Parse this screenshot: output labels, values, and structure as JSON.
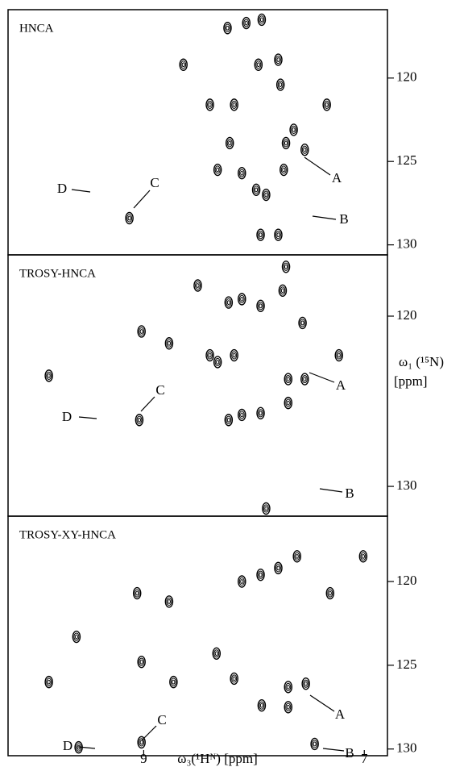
{
  "chart_data": [
    {
      "type": "scatter",
      "title": "HNCA",
      "color": "#000000",
      "xlim": [
        10.23,
        6.79
      ],
      "ylim": [
        115.9,
        130.6
      ],
      "yticks": [
        120,
        125,
        130
      ],
      "x": [
        8.24,
        8.07,
        7.93,
        7.78,
        7.96,
        7.76,
        8.18,
        8.22,
        7.98,
        7.73,
        7.71,
        7.54,
        8.11,
        7.94,
        7.78,
        8.33,
        8.4,
        8.64,
        9.13,
        7.34,
        7.64,
        7.89
      ],
      "y": [
        117.0,
        116.7,
        116.5,
        118.9,
        119.2,
        120.4,
        121.6,
        123.9,
        126.7,
        125.5,
        123.9,
        124.3,
        125.7,
        129.4,
        129.4,
        125.5,
        121.6,
        119.2,
        128.4,
        121.6,
        123.1,
        127.0
      ],
      "annotations": [
        "A",
        "B",
        "C",
        "D"
      ]
    },
    {
      "type": "scatter",
      "title": "TROSY-HNCA",
      "color": "#000000",
      "xlim": [
        10.23,
        6.79
      ],
      "ylim": [
        116.4,
        131.75
      ],
      "yticks": [
        120,
        130
      ],
      "ylabel": [
        "ω₁ (¹⁵N)",
        "[ppm]"
      ],
      "x": [
        7.94,
        8.11,
        8.23,
        7.74,
        7.56,
        7.54,
        7.69,
        7.69,
        7.94,
        8.11,
        8.23,
        8.33,
        8.18,
        8.77,
        9.02,
        8.51,
        8.4,
        9.04,
        7.71,
        9.86,
        7.23,
        7.89
      ],
      "y": [
        119.4,
        119.0,
        119.2,
        118.5,
        120.4,
        123.7,
        125.1,
        123.7,
        125.7,
        125.8,
        126.1,
        122.7,
        122.3,
        121.6,
        120.9,
        118.2,
        122.3,
        126.1,
        117.1,
        123.5,
        122.3,
        131.3
      ],
      "annotations": [
        "A",
        "B",
        "C",
        "D"
      ]
    },
    {
      "type": "scatter",
      "title": "TROSY-XY-HNCA",
      "color": "#000000",
      "xlim": [
        10.23,
        6.79
      ],
      "ylim": [
        116.1,
        130.4
      ],
      "yticks": [
        120,
        125,
        130
      ],
      "xticks": [
        9,
        7
      ],
      "xlabel": "ω₃(¹Hᴺ) [ppm]",
      "x": [
        8.11,
        7.94,
        7.78,
        7.61,
        8.77,
        9.02,
        9.06,
        8.34,
        8.18,
        7.93,
        7.69,
        7.69,
        7.53,
        7.45,
        9.02,
        9.59,
        9.86,
        9.61,
        8.73,
        7.01,
        7.31
      ],
      "y": [
        120.0,
        119.6,
        119.2,
        118.5,
        121.2,
        124.8,
        120.7,
        124.3,
        125.8,
        127.4,
        126.3,
        127.5,
        126.1,
        129.7,
        129.6,
        129.9,
        126.0,
        123.3,
        126.0,
        118.5,
        120.7
      ],
      "annotations": [
        "A",
        "B",
        "C",
        "D"
      ]
    }
  ]
}
